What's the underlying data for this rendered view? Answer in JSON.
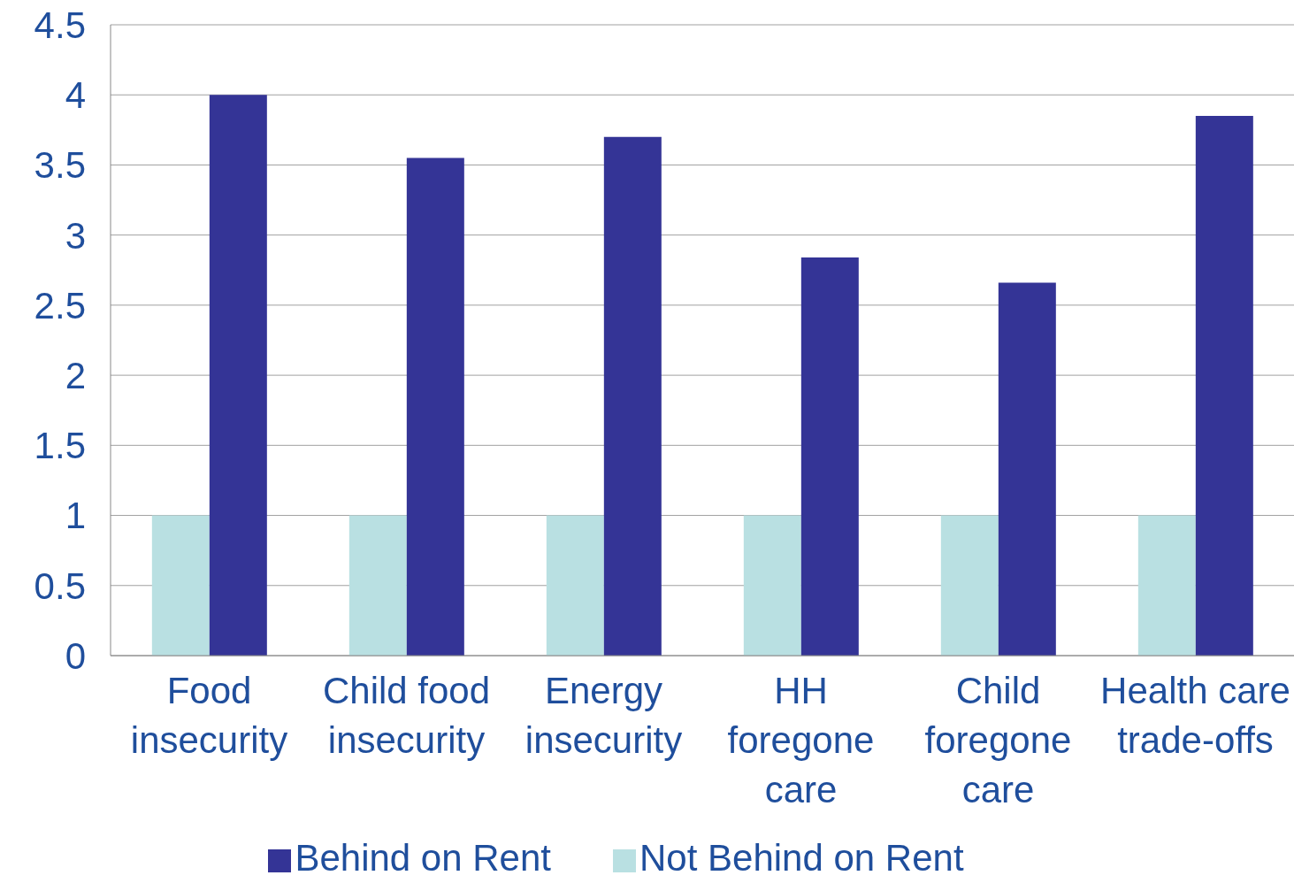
{
  "chart_data": {
    "type": "bar",
    "categories": [
      "Food insecurity",
      "Child food insecurity",
      "Energy insecurity",
      "HH foregone care",
      "Child foregone care",
      "Health care trade-offs"
    ],
    "series": [
      {
        "name": "Not Behind on Rent",
        "color": "#b9e0e2",
        "values": [
          1,
          1,
          1,
          1,
          1,
          1
        ]
      },
      {
        "name": "Behind on Rent",
        "color": "#343496",
        "values": [
          4.0,
          3.55,
          3.7,
          2.84,
          2.66,
          3.85
        ]
      }
    ],
    "ylim": [
      0,
      4.5
    ],
    "yticks": [
      0,
      0.5,
      1,
      1.5,
      2,
      2.5,
      3,
      3.5,
      4,
      4.5
    ],
    "grid": "y",
    "legend": "bottom"
  }
}
